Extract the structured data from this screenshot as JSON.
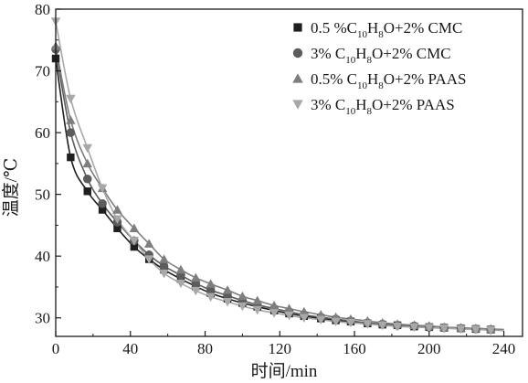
{
  "chart_data": {
    "type": "scatter",
    "title": "",
    "xlabel": "时间/min",
    "ylabel": "温度/℃",
    "xlim": [
      0,
      250
    ],
    "ylim": [
      27,
      80
    ],
    "xticks": [
      0,
      40,
      80,
      120,
      160,
      200,
      240
    ],
    "yticks": [
      30,
      40,
      50,
      60,
      70,
      80
    ],
    "grid": false,
    "legend_position": "top-right",
    "series": [
      {
        "name": "0.5 %C10H8O+2% CMC",
        "legend_parts": [
          [
            "0.5 %C",
            ""
          ],
          [
            "10",
            "sub"
          ],
          [
            "H",
            ""
          ],
          [
            "8",
            "sub"
          ],
          [
            "O+2% CMC",
            ""
          ]
        ],
        "marker": "square",
        "color": "#1f1f1f",
        "x": [
          0,
          8,
          17,
          25,
          33,
          42,
          50,
          58,
          67,
          75,
          83,
          92,
          100,
          108,
          117,
          125,
          133,
          142,
          150,
          158,
          167,
          175,
          183,
          192,
          200,
          208,
          217,
          225,
          233
        ],
        "y": [
          72,
          56,
          50.5,
          47.5,
          44.5,
          41.5,
          39.5,
          37.8,
          36.3,
          35.1,
          34.0,
          33.1,
          32.4,
          31.8,
          31.2,
          30.7,
          30.3,
          29.9,
          29.6,
          29.4,
          29.1,
          28.9,
          28.8,
          28.6,
          28.5,
          28.4,
          28.3,
          28.2,
          28.1
        ]
      },
      {
        "name": "3% C10H8O+2% CMC",
        "legend_parts": [
          [
            "3% C",
            ""
          ],
          [
            "10",
            "sub"
          ],
          [
            "H",
            ""
          ],
          [
            "8",
            "sub"
          ],
          [
            "O+2% CMC",
            ""
          ]
        ],
        "marker": "circle",
        "color": "#5c5c5c",
        "x": [
          0,
          8,
          17,
          25,
          33,
          42,
          50,
          58,
          67,
          75,
          83,
          92,
          100,
          108,
          117,
          125,
          133,
          142,
          150,
          158,
          167,
          175,
          183,
          192,
          200,
          208,
          217,
          225,
          233
        ],
        "y": [
          73.5,
          60,
          52.5,
          48.5,
          45.5,
          42.5,
          40.2,
          38.4,
          36.9,
          35.6,
          34.5,
          33.6,
          32.8,
          32.1,
          31.5,
          31.0,
          30.5,
          30.1,
          29.8,
          29.5,
          29.2,
          29.0,
          28.8,
          28.7,
          28.5,
          28.4,
          28.3,
          28.2,
          28.1
        ]
      },
      {
        "name": "0.5% C10H8O+2% PAAS",
        "legend_parts": [
          [
            "0.5% C",
            ""
          ],
          [
            "10",
            "sub"
          ],
          [
            "H",
            ""
          ],
          [
            "8",
            "sub"
          ],
          [
            "O+2% PAAS",
            ""
          ]
        ],
        "marker": "triangle-up",
        "color": "#7e7e7e",
        "x": [
          0,
          8,
          17,
          25,
          33,
          42,
          50,
          58,
          67,
          75,
          83,
          92,
          100,
          108,
          117,
          125,
          133,
          142,
          150,
          158,
          167,
          175,
          183,
          192,
          200,
          208,
          217,
          225,
          233
        ],
        "y": [
          74,
          62,
          55,
          51,
          47.5,
          44.5,
          42,
          39.5,
          37.8,
          36.5,
          35.5,
          34.5,
          33.5,
          32.8,
          32.0,
          31.5,
          31.0,
          30.5,
          30.1,
          29.8,
          29.5,
          29.2,
          29.0,
          28.8,
          28.7,
          28.5,
          28.4,
          28.3,
          28.2
        ]
      },
      {
        "name": "3% C10H8O+2% PAAS",
        "legend_parts": [
          [
            "3% C",
            ""
          ],
          [
            "10",
            "sub"
          ],
          [
            "H",
            ""
          ],
          [
            "8",
            "sub"
          ],
          [
            "O+2% PAAS",
            ""
          ]
        ],
        "marker": "triangle-down",
        "color": "#a8a8a8",
        "x": [
          0,
          8,
          17,
          25,
          33,
          42,
          50,
          58,
          67,
          75,
          83,
          92,
          100,
          108,
          117,
          125,
          133,
          142,
          150,
          158,
          167,
          175,
          183,
          192,
          200,
          208,
          217,
          225,
          233
        ],
        "y": [
          78,
          65.5,
          57.5,
          51,
          46,
          42.5,
          39.5,
          37.2,
          35.6,
          34.4,
          33.4,
          32.6,
          31.9,
          31.3,
          30.8,
          30.4,
          30.0,
          29.7,
          29.4,
          29.2,
          29.0,
          28.8,
          28.6,
          28.5,
          28.4,
          28.3,
          28.2,
          28.1,
          28.0
        ]
      }
    ]
  }
}
